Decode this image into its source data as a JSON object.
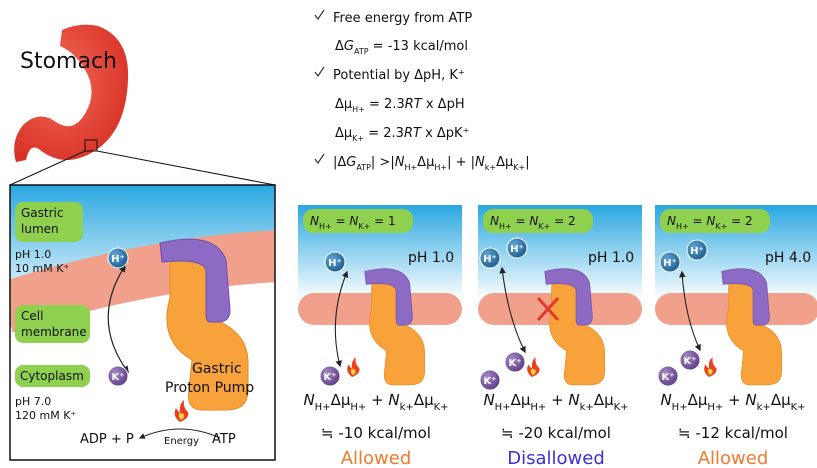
{
  "stomach_label": "Stomach",
  "left_panel": {
    "lumen_label": [
      "Gastric",
      "lumen"
    ],
    "lumen_conditions": [
      "pH 1.0",
      "10 mM K⁺"
    ],
    "membrane_label": [
      "Cell",
      "membrane"
    ],
    "cytoplasm_label": "Cytoplasm",
    "cytoplasm_conditions": [
      "pH 7.0",
      "120 mM K⁺"
    ],
    "pump_label": [
      "Gastric",
      "Proton Pump"
    ],
    "adp": "ADP + P",
    "energy": "Energy",
    "atp": "ATP"
  },
  "ions": {
    "h": "H⁺",
    "k": "K⁺"
  },
  "checklist": [
    [
      "Free energy from ATP"
    ],
    [
      "Δ",
      "G",
      "ATP",
      " = -13 kcal/mol"
    ],
    [
      "Potential by ΔpH, K⁺"
    ],
    [
      "Δμ",
      "H+",
      " =  2.3",
      "RT",
      " x ΔpH"
    ],
    [
      "Δμ",
      "K+",
      " =  2.3",
      "RT",
      " x ΔpK⁺"
    ],
    [
      "|Δ",
      "G",
      "ATP",
      "| >|",
      "N",
      "H+",
      "Δμ",
      "H+",
      "| + |",
      "N",
      "k+",
      "Δμ",
      "K+",
      "|"
    ]
  ],
  "panels": [
    {
      "n_label": [
        "N",
        "H+",
        " = ",
        "N",
        "K+",
        " = 1"
      ],
      "ph": "pH 1.0",
      "formula": [
        "N",
        "H+",
        "Δμ",
        "H+",
        " + ",
        "N",
        "k+",
        "Δμ",
        "K+"
      ],
      "energy": "≒  -10 kcal/mol",
      "verdict": "Allowed"
    },
    {
      "n_label": [
        "N",
        "H+",
        " = ",
        "N",
        "K+",
        " = 2"
      ],
      "ph": "pH 1.0",
      "formula": [
        "N",
        "H+",
        "Δμ",
        "H+",
        " + ",
        "N",
        "k+",
        "Δμ",
        "K+"
      ],
      "energy": "≒  -20 kcal/mol",
      "verdict": "Disallowed"
    },
    {
      "n_label": [
        "N",
        "H+",
        " = ",
        "N",
        "K+",
        " = 2"
      ],
      "ph": "pH 4.0",
      "formula": [
        "N",
        "H+",
        "Δμ",
        "H+",
        " + ",
        "N",
        "k+",
        "Δμ",
        "K+"
      ],
      "energy": "≒  -12 kcal/mol",
      "verdict": "Allowed"
    }
  ]
}
